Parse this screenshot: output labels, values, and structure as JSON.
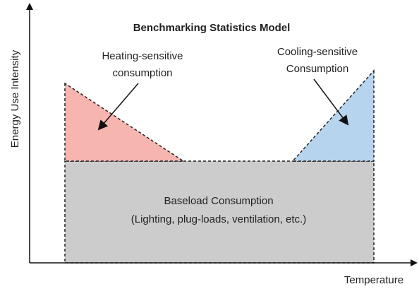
{
  "title": "Benchmarking Statistics Model",
  "y_axis_label": "Energy Use Intensity",
  "x_axis_label": "Temperature",
  "regions": {
    "heating": {
      "lines": [
        "Heating-sensitive",
        "consumption"
      ]
    },
    "cooling": {
      "lines": [
        "Cooling-sensitive",
        "Consumption"
      ]
    },
    "baseload": {
      "lines": [
        "Baseload Consumption",
        "(Lighting, plug-loads, ventilation, etc.)"
      ]
    }
  }
}
